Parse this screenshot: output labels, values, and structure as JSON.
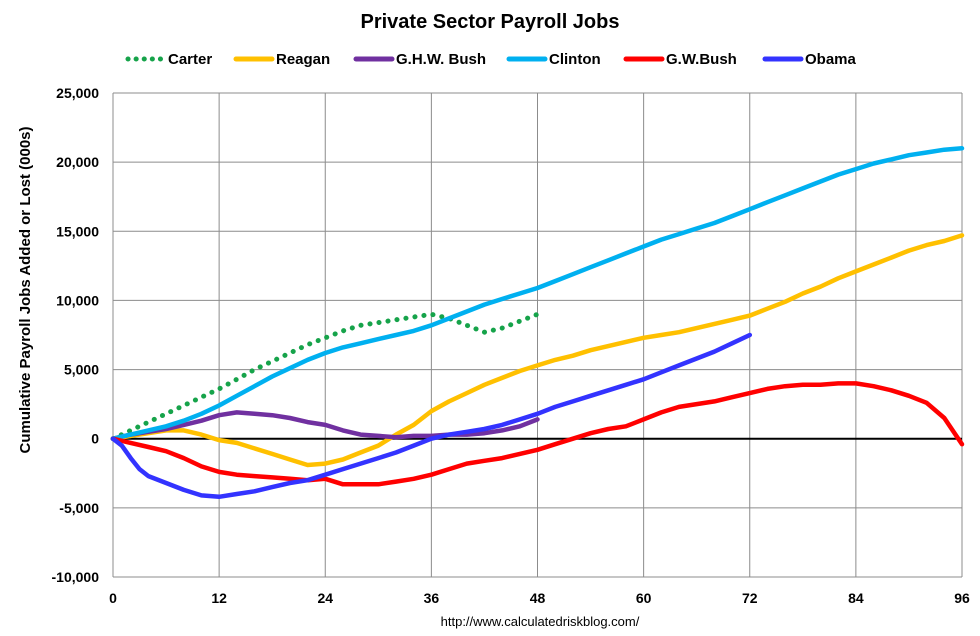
{
  "chart_data": {
    "type": "line",
    "title": "Private Sector Payroll Jobs",
    "xlabel": "",
    "ylabel": "Cumulative Payroll Jobs Added or  Lost (000s)",
    "source": "http://www.calculatedriskblog.com/",
    "xlim": [
      0,
      96
    ],
    "ylim": [
      -10000,
      25000
    ],
    "xticks": [
      0,
      12,
      24,
      36,
      48,
      60,
      72,
      84,
      96
    ],
    "xtick_labels": [
      "0",
      "12",
      "24",
      "36",
      "48",
      "60",
      "72",
      "84",
      "96"
    ],
    "yticks": [
      -10000,
      -5000,
      0,
      5000,
      10000,
      15000,
      20000,
      25000
    ],
    "ytick_labels": [
      "-10,000",
      "-5,000",
      "0",
      "5,000",
      "10,000",
      "15,000",
      "20,000",
      "25,000"
    ],
    "grid": true,
    "legend_position": "top",
    "series": [
      {
        "name": "Carter",
        "color": "#16a34a",
        "style": "dotted",
        "points": [
          [
            0,
            0
          ],
          [
            2,
            600
          ],
          [
            4,
            1200
          ],
          [
            6,
            1800
          ],
          [
            8,
            2400
          ],
          [
            10,
            3000
          ],
          [
            12,
            3600
          ],
          [
            14,
            4300
          ],
          [
            16,
            5000
          ],
          [
            18,
            5600
          ],
          [
            20,
            6200
          ],
          [
            22,
            6800
          ],
          [
            24,
            7300
          ],
          [
            26,
            7800
          ],
          [
            28,
            8200
          ],
          [
            30,
            8400
          ],
          [
            32,
            8600
          ],
          [
            34,
            8800
          ],
          [
            36,
            9000
          ],
          [
            38,
            8700
          ],
          [
            40,
            8200
          ],
          [
            42,
            7700
          ],
          [
            44,
            8000
          ],
          [
            46,
            8500
          ],
          [
            48,
            9000
          ]
        ]
      },
      {
        "name": "Reagan",
        "color": "#ffc000",
        "style": "solid",
        "points": [
          [
            0,
            0
          ],
          [
            2,
            200
          ],
          [
            4,
            400
          ],
          [
            6,
            600
          ],
          [
            8,
            600
          ],
          [
            10,
            300
          ],
          [
            12,
            -100
          ],
          [
            14,
            -300
          ],
          [
            16,
            -700
          ],
          [
            18,
            -1100
          ],
          [
            20,
            -1500
          ],
          [
            22,
            -1900
          ],
          [
            24,
            -1800
          ],
          [
            26,
            -1500
          ],
          [
            28,
            -1000
          ],
          [
            30,
            -500
          ],
          [
            32,
            300
          ],
          [
            34,
            1000
          ],
          [
            36,
            2000
          ],
          [
            38,
            2700
          ],
          [
            40,
            3300
          ],
          [
            42,
            3900
          ],
          [
            44,
            4400
          ],
          [
            46,
            4900
          ],
          [
            48,
            5300
          ],
          [
            50,
            5700
          ],
          [
            52,
            6000
          ],
          [
            54,
            6400
          ],
          [
            56,
            6700
          ],
          [
            58,
            7000
          ],
          [
            60,
            7300
          ],
          [
            62,
            7500
          ],
          [
            64,
            7700
          ],
          [
            66,
            8000
          ],
          [
            68,
            8300
          ],
          [
            70,
            8600
          ],
          [
            72,
            8900
          ],
          [
            74,
            9400
          ],
          [
            76,
            9900
          ],
          [
            78,
            10500
          ],
          [
            80,
            11000
          ],
          [
            82,
            11600
          ],
          [
            84,
            12100
          ],
          [
            86,
            12600
          ],
          [
            88,
            13100
          ],
          [
            90,
            13600
          ],
          [
            92,
            14000
          ],
          [
            94,
            14300
          ],
          [
            96,
            14700
          ]
        ]
      },
      {
        "name": "G.H.W. Bush",
        "color": "#7030a0",
        "style": "solid",
        "points": [
          [
            0,
            0
          ],
          [
            2,
            300
          ],
          [
            4,
            500
          ],
          [
            6,
            700
          ],
          [
            8,
            1000
          ],
          [
            10,
            1300
          ],
          [
            12,
            1700
          ],
          [
            14,
            1900
          ],
          [
            16,
            1800
          ],
          [
            18,
            1700
          ],
          [
            20,
            1500
          ],
          [
            22,
            1200
          ],
          [
            24,
            1000
          ],
          [
            26,
            600
          ],
          [
            28,
            300
          ],
          [
            30,
            200
          ],
          [
            32,
            100
          ],
          [
            34,
            200
          ],
          [
            36,
            200
          ],
          [
            38,
            300
          ],
          [
            40,
            300
          ],
          [
            42,
            400
          ],
          [
            44,
            600
          ],
          [
            46,
            900
          ],
          [
            48,
            1400
          ]
        ]
      },
      {
        "name": "Clinton",
        "color": "#00b0f0",
        "style": "solid",
        "points": [
          [
            0,
            0
          ],
          [
            2,
            300
          ],
          [
            4,
            600
          ],
          [
            6,
            900
          ],
          [
            8,
            1300
          ],
          [
            10,
            1800
          ],
          [
            12,
            2400
          ],
          [
            14,
            3100
          ],
          [
            16,
            3800
          ],
          [
            18,
            4500
          ],
          [
            20,
            5100
          ],
          [
            22,
            5700
          ],
          [
            24,
            6200
          ],
          [
            26,
            6600
          ],
          [
            28,
            6900
          ],
          [
            30,
            7200
          ],
          [
            32,
            7500
          ],
          [
            34,
            7800
          ],
          [
            36,
            8200
          ],
          [
            38,
            8700
          ],
          [
            40,
            9200
          ],
          [
            42,
            9700
          ],
          [
            44,
            10100
          ],
          [
            46,
            10500
          ],
          [
            48,
            10900
          ],
          [
            50,
            11400
          ],
          [
            52,
            11900
          ],
          [
            54,
            12400
          ],
          [
            56,
            12900
          ],
          [
            58,
            13400
          ],
          [
            60,
            13900
          ],
          [
            62,
            14400
          ],
          [
            64,
            14800
          ],
          [
            66,
            15200
          ],
          [
            68,
            15600
          ],
          [
            70,
            16100
          ],
          [
            72,
            16600
          ],
          [
            74,
            17100
          ],
          [
            76,
            17600
          ],
          [
            78,
            18100
          ],
          [
            80,
            18600
          ],
          [
            82,
            19100
          ],
          [
            84,
            19500
          ],
          [
            86,
            19900
          ],
          [
            88,
            20200
          ],
          [
            90,
            20500
          ],
          [
            92,
            20700
          ],
          [
            94,
            20900
          ],
          [
            96,
            21000
          ]
        ]
      },
      {
        "name": "G.W.Bush",
        "color": "#ff0000",
        "style": "solid",
        "points": [
          [
            0,
            0
          ],
          [
            2,
            -300
          ],
          [
            4,
            -600
          ],
          [
            6,
            -900
          ],
          [
            8,
            -1400
          ],
          [
            10,
            -2000
          ],
          [
            12,
            -2400
          ],
          [
            14,
            -2600
          ],
          [
            16,
            -2700
          ],
          [
            18,
            -2800
          ],
          [
            20,
            -2900
          ],
          [
            22,
            -3000
          ],
          [
            24,
            -2900
          ],
          [
            26,
            -3300
          ],
          [
            28,
            -3300
          ],
          [
            30,
            -3300
          ],
          [
            32,
            -3100
          ],
          [
            34,
            -2900
          ],
          [
            36,
            -2600
          ],
          [
            38,
            -2200
          ],
          [
            40,
            -1800
          ],
          [
            42,
            -1600
          ],
          [
            44,
            -1400
          ],
          [
            46,
            -1100
          ],
          [
            48,
            -800
          ],
          [
            50,
            -400
          ],
          [
            52,
            0
          ],
          [
            54,
            400
          ],
          [
            56,
            700
          ],
          [
            58,
            900
          ],
          [
            60,
            1400
          ],
          [
            62,
            1900
          ],
          [
            64,
            2300
          ],
          [
            66,
            2500
          ],
          [
            68,
            2700
          ],
          [
            70,
            3000
          ],
          [
            72,
            3300
          ],
          [
            74,
            3600
          ],
          [
            76,
            3800
          ],
          [
            78,
            3900
          ],
          [
            80,
            3900
          ],
          [
            82,
            4000
          ],
          [
            84,
            4000
          ],
          [
            86,
            3800
          ],
          [
            88,
            3500
          ],
          [
            90,
            3100
          ],
          [
            92,
            2600
          ],
          [
            94,
            1500
          ],
          [
            96,
            -400
          ]
        ]
      },
      {
        "name": "Obama",
        "color": "#3333ff",
        "style": "solid",
        "points": [
          [
            0,
            0
          ],
          [
            1,
            -500
          ],
          [
            2,
            -1400
          ],
          [
            3,
            -2200
          ],
          [
            4,
            -2700
          ],
          [
            6,
            -3200
          ],
          [
            8,
            -3700
          ],
          [
            10,
            -4100
          ],
          [
            12,
            -4200
          ],
          [
            14,
            -4000
          ],
          [
            16,
            -3800
          ],
          [
            18,
            -3500
          ],
          [
            20,
            -3200
          ],
          [
            22,
            -3000
          ],
          [
            24,
            -2600
          ],
          [
            26,
            -2200
          ],
          [
            28,
            -1800
          ],
          [
            30,
            -1400
          ],
          [
            32,
            -1000
          ],
          [
            34,
            -500
          ],
          [
            36,
            0
          ],
          [
            38,
            300
          ],
          [
            40,
            500
          ],
          [
            42,
            700
          ],
          [
            44,
            1000
          ],
          [
            46,
            1400
          ],
          [
            48,
            1800
          ],
          [
            50,
            2300
          ],
          [
            52,
            2700
          ],
          [
            54,
            3100
          ],
          [
            56,
            3500
          ],
          [
            58,
            3900
          ],
          [
            60,
            4300
          ],
          [
            62,
            4800
          ],
          [
            64,
            5300
          ],
          [
            66,
            5800
          ],
          [
            68,
            6300
          ],
          [
            70,
            6900
          ],
          [
            72,
            7500
          ]
        ]
      }
    ]
  }
}
